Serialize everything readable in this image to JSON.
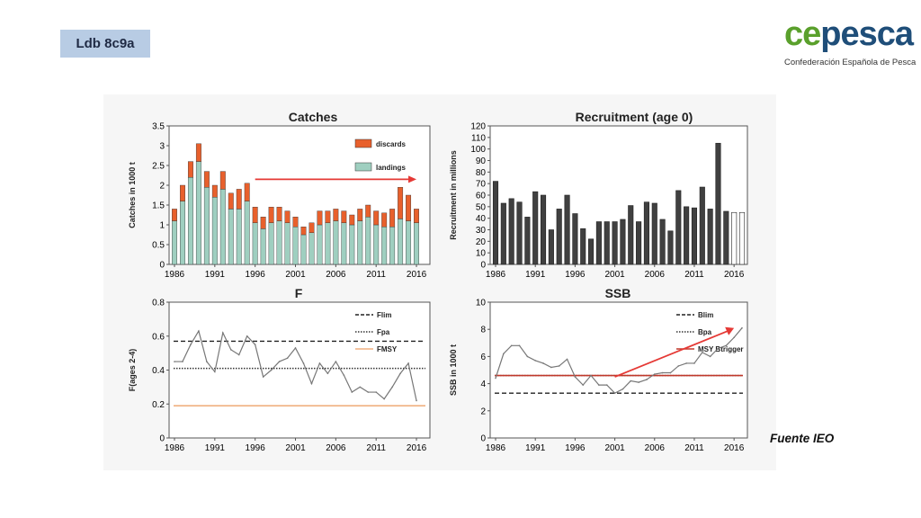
{
  "slide": {
    "tag": "Ldb 8c9a",
    "source": "Fuente IEO"
  },
  "logo": {
    "part1": "ce",
    "part2": "pesca",
    "subtitle": "Confederación Española de Pesca"
  },
  "colors": {
    "landings": "#9fcfc0",
    "discards": "#e8602c",
    "arrow": "#e53935",
    "recruit": "#404040",
    "line": "#777777",
    "fmsy": "#f0b080",
    "msybtrigger": "#c0392b"
  },
  "chart_data": [
    {
      "type": "bar",
      "title": "Catches",
      "ylabel": "Catches in 1000 t",
      "xlabel": "",
      "ylim": [
        0,
        3.5
      ],
      "yticks": [
        0,
        0.5,
        1,
        1.5,
        2,
        2.5,
        3,
        3.5
      ],
      "xticks": [
        1986,
        1991,
        1996,
        2001,
        2006,
        2011,
        2016
      ],
      "categories": [
        1986,
        1987,
        1988,
        1989,
        1990,
        1991,
        1992,
        1993,
        1994,
        1995,
        1996,
        1997,
        1998,
        1999,
        2000,
        2001,
        2002,
        2003,
        2004,
        2005,
        2006,
        2007,
        2008,
        2009,
        2010,
        2011,
        2012,
        2013,
        2014,
        2015,
        2016
      ],
      "series": [
        {
          "name": "landings",
          "values": [
            1.1,
            1.6,
            2.2,
            2.6,
            1.95,
            1.7,
            1.9,
            1.4,
            1.4,
            1.6,
            1.05,
            0.9,
            1.05,
            1.1,
            1.05,
            0.95,
            0.75,
            0.8,
            1.0,
            1.05,
            1.1,
            1.05,
            1.0,
            1.1,
            1.2,
            1.0,
            0.95,
            0.95,
            1.15,
            1.1,
            1.05
          ]
        },
        {
          "name": "discards",
          "values": [
            0.3,
            0.4,
            0.4,
            0.45,
            0.4,
            0.3,
            0.45,
            0.4,
            0.5,
            0.45,
            0.4,
            0.3,
            0.4,
            0.35,
            0.3,
            0.25,
            0.2,
            0.25,
            0.35,
            0.3,
            0.3,
            0.3,
            0.25,
            0.3,
            0.3,
            0.35,
            0.35,
            0.45,
            0.8,
            0.65,
            0.35
          ]
        }
      ],
      "legend": [
        "discards",
        "landings"
      ],
      "legend_position": "top-right",
      "annotation": "arrow from 1996 to 2016 at 2.15"
    },
    {
      "type": "bar",
      "title": "Recruitment (age 0)",
      "ylabel": "Recruitment in millions",
      "xlabel": "",
      "ylim": [
        0,
        120
      ],
      "yticks": [
        0,
        10,
        20,
        30,
        40,
        50,
        60,
        70,
        80,
        90,
        100,
        110,
        120
      ],
      "xticks": [
        1986,
        1991,
        1996,
        2001,
        2006,
        2011,
        2016
      ],
      "categories": [
        1986,
        1987,
        1988,
        1989,
        1990,
        1991,
        1992,
        1993,
        1994,
        1995,
        1996,
        1997,
        1998,
        1999,
        2000,
        2001,
        2002,
        2003,
        2004,
        2005,
        2006,
        2007,
        2008,
        2009,
        2010,
        2011,
        2012,
        2013,
        2014,
        2015,
        2016,
        2017
      ],
      "values": [
        72,
        53,
        57,
        54,
        41,
        63,
        60,
        30,
        48,
        60,
        44,
        31,
        22,
        37,
        37,
        37,
        39,
        51,
        37,
        54,
        53,
        39,
        29,
        64,
        50,
        49,
        67,
        48,
        105,
        46,
        45,
        45
      ],
      "open_bars": [
        2016,
        2017
      ]
    },
    {
      "type": "line",
      "title": "F",
      "ylabel": "F(ages 2-4)",
      "xlabel": "",
      "ylim": [
        0,
        0.8
      ],
      "yticks": [
        0,
        0.2,
        0.4,
        0.6,
        0.8
      ],
      "xticks": [
        1986,
        1991,
        1996,
        2001,
        2006,
        2011,
        2016
      ],
      "x": [
        1986,
        1987,
        1988,
        1989,
        1990,
        1991,
        1992,
        1993,
        1994,
        1995,
        1996,
        1997,
        1998,
        1999,
        2000,
        2001,
        2002,
        2003,
        2004,
        2005,
        2006,
        2007,
        2008,
        2009,
        2010,
        2011,
        2012,
        2013,
        2014,
        2015,
        2016
      ],
      "series": [
        {
          "name": "",
          "values": [
            0.45,
            0.45,
            0.55,
            0.63,
            0.45,
            0.39,
            0.62,
            0.52,
            0.49,
            0.6,
            0.55,
            0.36,
            0.4,
            0.45,
            0.47,
            0.53,
            0.44,
            0.32,
            0.44,
            0.38,
            0.45,
            0.37,
            0.27,
            0.3,
            0.27,
            0.27,
            0.23,
            0.3,
            0.38,
            0.44,
            0.22
          ]
        }
      ],
      "reference_lines": [
        {
          "name": "Flim",
          "y": 0.57,
          "style": "dashed"
        },
        {
          "name": "Fpa",
          "y": 0.41,
          "style": "dotted"
        },
        {
          "name": "FMSY",
          "y": 0.19,
          "style": "solid"
        }
      ],
      "legend_position": "top-right"
    },
    {
      "type": "line",
      "title": "SSB",
      "ylabel": "SSB in 1000 t",
      "xlabel": "",
      "ylim": [
        0,
        10
      ],
      "yticks": [
        0,
        2,
        4,
        6,
        8,
        10
      ],
      "xticks": [
        1986,
        1991,
        1996,
        2001,
        2006,
        2011,
        2016
      ],
      "x": [
        1986,
        1987,
        1988,
        1989,
        1990,
        1991,
        1992,
        1993,
        1994,
        1995,
        1996,
        1997,
        1998,
        1999,
        2000,
        2001,
        2002,
        2003,
        2004,
        2005,
        2006,
        2007,
        2008,
        2009,
        2010,
        2011,
        2012,
        2013,
        2014,
        2015,
        2016,
        2017
      ],
      "series": [
        {
          "name": "",
          "values": [
            4.4,
            6.2,
            6.8,
            6.8,
            6.0,
            5.7,
            5.5,
            5.2,
            5.3,
            5.8,
            4.5,
            3.9,
            4.6,
            3.9,
            3.9,
            3.3,
            3.6,
            4.2,
            4.1,
            4.3,
            4.7,
            4.8,
            4.8,
            5.3,
            5.5,
            5.5,
            6.3,
            6.0,
            6.6,
            6.8,
            7.4,
            8.1
          ]
        }
      ],
      "reference_lines": [
        {
          "name": "Blim",
          "y": 3.3,
          "style": "dashed"
        },
        {
          "name": "Bpa",
          "y": 4.6,
          "style": "dotted"
        },
        {
          "name": "MSY Btrigger",
          "y": 4.6,
          "style": "solid"
        }
      ],
      "legend_position": "top-right",
      "annotation": "arrow from 2001 to 2016 rising"
    }
  ]
}
